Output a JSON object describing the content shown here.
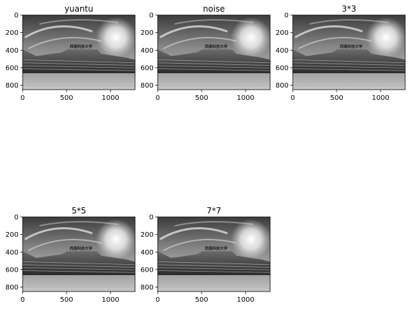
{
  "chart_data": [
    {
      "type": "image",
      "title": "yuantu",
      "xlim": [
        0,
        1280
      ],
      "ylim": [
        850,
        0
      ],
      "xticks": [
        0,
        500,
        1000
      ],
      "yticks": [
        0,
        200,
        400,
        600,
        800
      ],
      "sign_text": "西南科技大学"
    },
    {
      "type": "image",
      "title": "noise",
      "xlim": [
        0,
        1280
      ],
      "ylim": [
        850,
        0
      ],
      "xticks": [
        0,
        500,
        1000
      ],
      "yticks": [
        0,
        200,
        400,
        600,
        800
      ],
      "sign_text": "西南科技大学"
    },
    {
      "type": "image",
      "title": "3*3",
      "xlim": [
        0,
        1280
      ],
      "ylim": [
        850,
        0
      ],
      "xticks": [
        0,
        500,
        1000
      ],
      "yticks": [
        0,
        200,
        400,
        600,
        800
      ],
      "sign_text": "西南科技大学"
    },
    {
      "type": "image",
      "title": "5*5",
      "xlim": [
        0,
        1280
      ],
      "ylim": [
        850,
        0
      ],
      "xticks": [
        0,
        500,
        1000
      ],
      "yticks": [
        0,
        200,
        400,
        600,
        800
      ],
      "sign_text": "西南科技大学"
    },
    {
      "type": "image",
      "title": "7*7",
      "xlim": [
        0,
        1280
      ],
      "ylim": [
        850,
        0
      ],
      "xticks": [
        0,
        500,
        1000
      ],
      "yticks": [
        0,
        200,
        400,
        600,
        800
      ],
      "sign_text": "西南科技大学"
    }
  ]
}
